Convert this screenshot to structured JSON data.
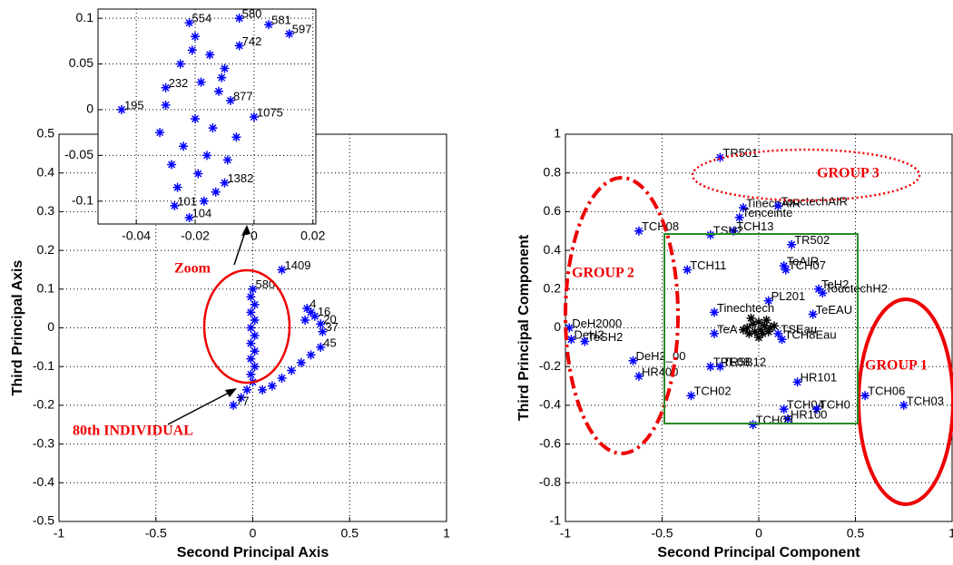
{
  "chart_data": [
    {
      "type": "scatter",
      "xlabel": "Second Principal Axis",
      "ylabel": "Third Principal Axis",
      "xlim": [
        -1,
        1
      ],
      "ylim": [
        -0.5,
        0.5
      ],
      "xticks": [
        -1,
        -0.5,
        0,
        0.5,
        1
      ],
      "yticks": [
        -0.5,
        -0.4,
        -0.3,
        -0.2,
        -0.1,
        0,
        0.1,
        0.2,
        0.3,
        0.4,
        0.5
      ],
      "grid": true,
      "series": [
        {
          "color": "#0000ff",
          "x": [
            0.15,
            0,
            -0.01,
            0.01,
            -0.01,
            0.01,
            -0.01,
            0.01,
            -0.01,
            0.01,
            -0.01,
            0.01,
            -0.01,
            0,
            -0.03,
            -0.06,
            -0.1,
            0.05,
            0.1,
            0.15,
            0.2,
            0.25,
            0.3,
            0.35,
            0.36,
            0.35,
            0.32,
            0.28,
            0.3,
            0.27
          ],
          "values": [
            0.15,
            0.1,
            0.08,
            0.06,
            0.04,
            0.02,
            0,
            -0.02,
            -0.04,
            -0.06,
            -0.08,
            -0.1,
            -0.12,
            -0.14,
            -0.16,
            -0.18,
            -0.2,
            -0.16,
            -0.15,
            -0.13,
            -0.11,
            -0.09,
            -0.07,
            -0.05,
            -0.01,
            0.01,
            0.03,
            0.05,
            0.04,
            0.02
          ],
          "point_labels": [
            "1409",
            "580",
            null,
            null,
            null,
            null,
            null,
            null,
            null,
            null,
            null,
            null,
            null,
            null,
            null,
            null,
            "77",
            null,
            null,
            null,
            null,
            null,
            null,
            "45",
            "37",
            "20",
            "16",
            "4",
            null,
            null
          ]
        }
      ],
      "annotations": [
        "Zoom",
        "80th INDIVIDUAL"
      ]
    },
    {
      "type": "scatter",
      "xlim": [
        -0.053,
        0.021
      ],
      "ylim": [
        -0.125,
        0.11
      ],
      "xticks": [
        -0.04,
        -0.02,
        0,
        0.02
      ],
      "yticks": [
        -0.1,
        -0.05,
        0,
        0.05,
        0.1
      ],
      "grid": true,
      "series": [
        {
          "color": "#0000ff",
          "x": [
            -0.022,
            -0.005,
            0.005,
            0.012,
            -0.005,
            -0.03,
            -0.045,
            -0.008,
            0,
            -0.01,
            -0.022,
            -0.027,
            -0.02,
            -0.015,
            -0.01,
            -0.025,
            -0.018,
            -0.012,
            -0.03,
            -0.02,
            -0.014,
            -0.006,
            -0.024,
            -0.016,
            -0.028,
            -0.009,
            -0.019,
            -0.013,
            -0.026,
            -0.017,
            -0.011,
            -0.032,
            -0.021
          ],
          "values": [
            0.095,
            0.1,
            0.093,
            0.083,
            0.07,
            0.024,
            0,
            0.01,
            -0.008,
            -0.08,
            -0.118,
            -0.105,
            0.08,
            0.06,
            0.045,
            0.05,
            0.03,
            0.02,
            0.005,
            -0.01,
            -0.02,
            -0.03,
            -0.04,
            -0.05,
            -0.06,
            -0.055,
            -0.07,
            -0.09,
            -0.085,
            -0.1,
            0.035,
            -0.025,
            0.065
          ],
          "point_labels": [
            "554",
            "580",
            "581",
            "597",
            "742",
            "232",
            "195",
            "877",
            "1075",
            "1382",
            "104",
            "101",
            null,
            null,
            null,
            null,
            null,
            null,
            null,
            null,
            null,
            null,
            null,
            null,
            null,
            null,
            null,
            null,
            null,
            null,
            null,
            null,
            null
          ]
        }
      ]
    },
    {
      "type": "scatter",
      "xlabel": "Second Principal Component",
      "ylabel": "Third Principal Component",
      "xlim": [
        -1,
        1
      ],
      "ylim": [
        -1,
        1
      ],
      "xticks": [
        -1,
        -0.5,
        0,
        0.5,
        1
      ],
      "yticks": [
        -1,
        -0.8,
        -0.6,
        -0.4,
        -0.2,
        0,
        0.2,
        0.4,
        0.6,
        0.8,
        1
      ],
      "grid": true,
      "series": [
        {
          "color": "#000000",
          "x": [
            -0.06,
            -0.03,
            0,
            0.03,
            0.06,
            -0.05,
            -0.02,
            0.02,
            0.05,
            0.08,
            -0.08,
            0,
            0.04,
            -0.04,
            0.01
          ],
          "values": [
            0,
            0.02,
            0.03,
            0.01,
            0,
            -0.03,
            -0.02,
            -0.03,
            -0.02,
            0.01,
            -0.01,
            -0.05,
            0.04,
            0.05,
            -0.01
          ]
        },
        {
          "color": "#0000ff",
          "x": [
            -0.2,
            -0.08,
            0.1,
            -0.1,
            -0.62,
            -0.13,
            -0.25,
            0.17,
            -0.37,
            0.13,
            0.14,
            0.31,
            0.33,
            0.05,
            0.28,
            -0.23,
            -0.23,
            0.1,
            0.12,
            -0.98,
            -0.97,
            -0.9,
            -0.65,
            -0.62,
            -0.25,
            -0.2,
            0.2,
            -0.35,
            0.13,
            0.3,
            0.15,
            -0.03,
            0.55,
            0.75
          ],
          "values": [
            0.88,
            0.62,
            0.63,
            0.57,
            0.5,
            0.5,
            0.48,
            0.43,
            0.3,
            0.32,
            0.3,
            0.2,
            0.18,
            0.14,
            0.07,
            0.08,
            -0.03,
            -0.03,
            -0.06,
            0,
            -0.06,
            -0.07,
            -0.17,
            -0.25,
            -0.2,
            -0.2,
            -0.28,
            -0.35,
            -0.42,
            -0.42,
            -0.47,
            -0.5,
            -0.35,
            -0.4
          ],
          "point_labels": [
            "TR501",
            "TinechAIR",
            "TouctechAIR",
            "Tenceinte",
            "TCH08",
            "TCH13",
            "TSH2",
            "TR502",
            "TCH11",
            "TeAIR",
            "TCH07",
            "TeH2",
            "TouctechH2",
            "PL201",
            "TeEAU",
            "Tinechtech",
            "TeA",
            "TSEau",
            "TCH8Eau",
            "DeH2000",
            "DeH2",
            "TeSH2",
            "DeH2_00",
            "HR400",
            "TRE08",
            "TR5B12",
            "HR101",
            "TCH02",
            "TCH04",
            "TCH0",
            "HR100",
            "TCH05",
            "TCH06",
            "TCH03"
          ]
        }
      ],
      "annotations": [
        "GROUP 1",
        "GROUP 2",
        "GROUP 3"
      ]
    }
  ]
}
